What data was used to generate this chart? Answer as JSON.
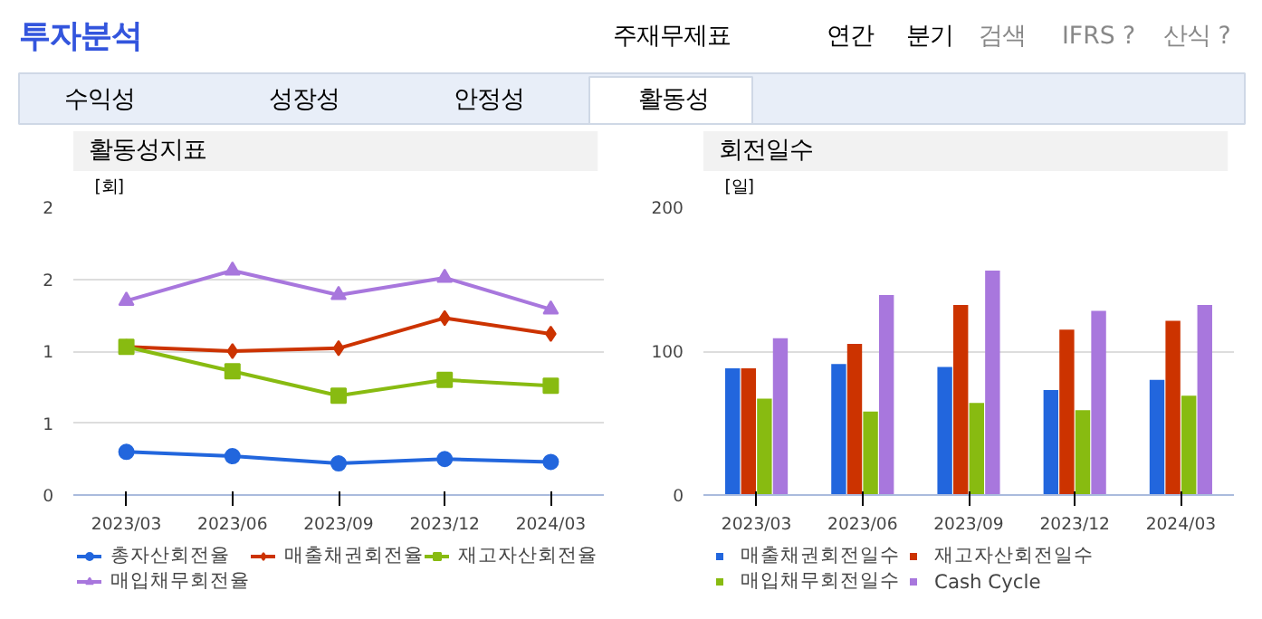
{
  "chart_data": [
    {
      "type": "line",
      "title": "활동성지표",
      "ylabel": "[회]",
      "annotations": [
        "투자분석",
        "주재무제표",
        "연간",
        "분기",
        "검색",
        "IFRS ?",
        "산식 ?",
        "수익성",
        "성장성",
        "안정성",
        "활동성"
      ],
      "categories": [
        "2023/03",
        "2023/06",
        "2023/09",
        "2023/12",
        "2024/03"
      ],
      "ylim": [
        0,
        2
      ],
      "yticks": [
        0,
        {
          "value": 0.5,
          "label": "1"
        },
        {
          "value": 1,
          "label": "1"
        },
        {
          "value": 1.5,
          "label": "2"
        },
        {
          "value": 2,
          "label": "2"
        }
      ],
      "grid": "y",
      "legend": "bottom",
      "series": [
        {
          "name": "총자산회전율",
          "color": "#2266dd",
          "marker": "circle",
          "values": [
            0.3,
            0.27,
            0.22,
            0.25,
            0.23
          ]
        },
        {
          "name": "매출채권회전율",
          "color": "#cc3300",
          "marker": "diamond",
          "values": [
            1.03,
            1.0,
            1.02,
            1.23,
            1.12
          ]
        },
        {
          "name": "재고자산회전율",
          "color": "#88bb11",
          "marker": "square",
          "values": [
            1.03,
            0.86,
            0.69,
            0.8,
            0.76
          ]
        },
        {
          "name": "매입채무회전율",
          "color": "#a877dd",
          "marker": "triangle",
          "values": [
            1.35,
            1.56,
            1.39,
            1.51,
            1.29
          ]
        }
      ]
    },
    {
      "type": "bar",
      "title": "회전일수",
      "ylabel": "[일]",
      "categories": [
        "2023/03",
        "2023/06",
        "2023/09",
        "2023/12",
        "2024/03"
      ],
      "ylim": [
        0,
        200
      ],
      "yticks": [
        0,
        100,
        200
      ],
      "grid": "y",
      "legend": "bottom",
      "series": [
        {
          "name": "매출채권회전일수",
          "color": "#2266dd",
          "values": [
            88,
            91,
            89,
            73,
            80
          ]
        },
        {
          "name": "재고자산회전일수",
          "color": "#cc3300",
          "values": [
            88,
            105,
            132,
            115,
            121
          ]
        },
        {
          "name": "매입채무회전일수",
          "color": "#88bb11",
          "values": [
            67,
            58,
            64,
            59,
            69
          ]
        },
        {
          "name": "Cash Cycle",
          "color": "#a877dd",
          "values": [
            109,
            139,
            156,
            128,
            132
          ]
        }
      ]
    }
  ]
}
